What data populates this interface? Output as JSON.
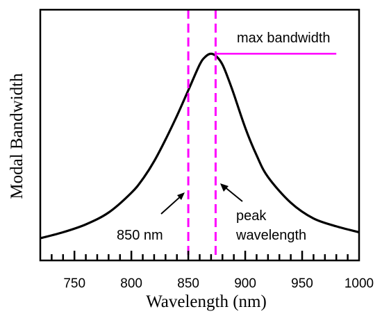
{
  "chart_data": {
    "type": "line",
    "title": "",
    "xlabel": "Wavelength (nm)",
    "ylabel": "Modal Bandwidth",
    "xlim": [
      720,
      1000
    ],
    "ylim": [
      0,
      1
    ],
    "x_ticks": [
      750,
      800,
      850,
      900,
      950,
      1000
    ],
    "x_tick_labels": [
      "750",
      "800",
      "850",
      "900",
      "950",
      "1000"
    ],
    "minor_tick_step": 10,
    "grid": false,
    "series": [
      {
        "color": "#000000",
        "x": [
          720,
          740,
          760,
          780,
          800,
          810,
          820,
          830,
          840,
          850,
          860,
          865,
          870,
          875,
          880,
          885,
          890,
          900,
          910,
          920,
          940,
          960,
          980,
          1000
        ],
        "y": [
          0.06,
          0.09,
          0.13,
          0.19,
          0.29,
          0.36,
          0.45,
          0.56,
          0.68,
          0.81,
          0.94,
          0.98,
          0.995,
          0.98,
          0.94,
          0.87,
          0.79,
          0.62,
          0.48,
          0.37,
          0.24,
          0.16,
          0.12,
          0.09
        ]
      }
    ],
    "vlines": [
      {
        "x": 850,
        "color": "#ff00ff",
        "style": "dashed"
      },
      {
        "x": 874,
        "color": "#ff00ff",
        "style": "dashed"
      }
    ],
    "hline": {
      "x_from": 874,
      "x_to": 980,
      "y": 0.995,
      "color": "#ff00ff"
    },
    "annotations": {
      "max_label": "max bandwidth",
      "label_850": "850 nm",
      "peak_line1": "peak",
      "peak_line2": "wavelength"
    }
  }
}
